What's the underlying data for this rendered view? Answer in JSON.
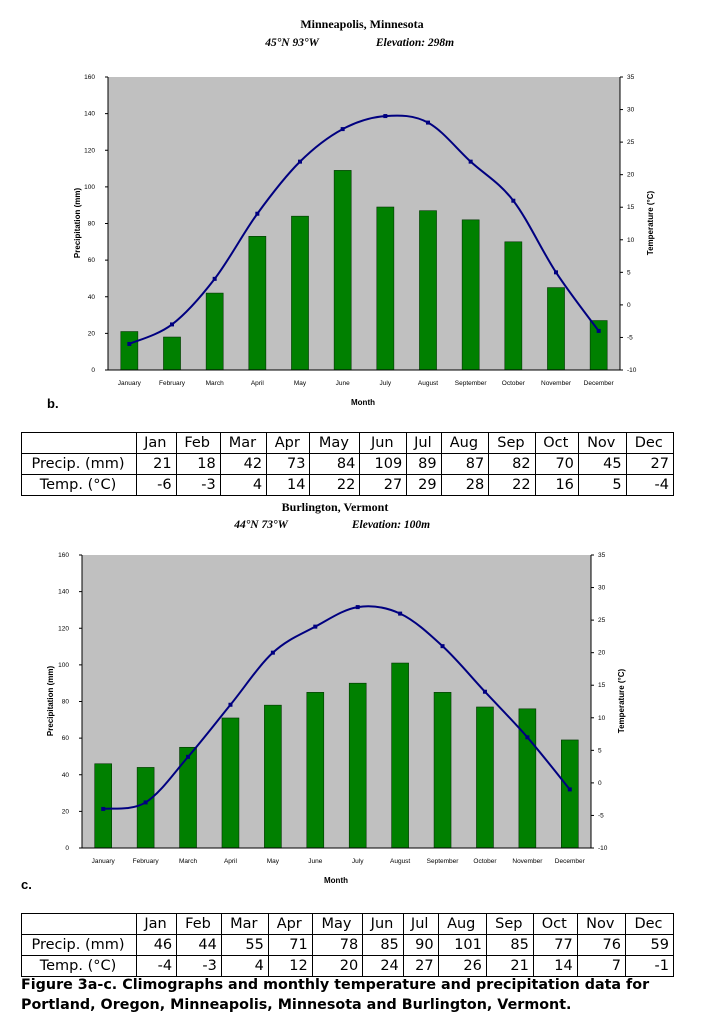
{
  "charts": [
    {
      "panel": "b.",
      "title": "Minneapolis, Minnesota",
      "coords": "45°N 93°W",
      "elevation": "Elevation: 298m",
      "xlabel": "Month",
      "ylabel_left": "Precipitation (mm)",
      "ylabel_right": "Temperature (°C)",
      "months": [
        "January",
        "February",
        "March",
        "April",
        "May",
        "June",
        "July",
        "August",
        "September",
        "October",
        "November",
        "December"
      ],
      "precip": [
        21,
        18,
        42,
        73,
        84,
        109,
        89,
        87,
        82,
        70,
        45,
        27
      ],
      "temp": [
        -6,
        -3,
        4,
        14,
        22,
        27,
        29,
        28,
        22,
        16,
        5,
        -4
      ],
      "precip_ticks": [
        "0",
        "20",
        "40",
        "60",
        "80",
        "100",
        "120",
        "140",
        "160"
      ],
      "temp_ticks": [
        "-10",
        "-5",
        "0",
        "5",
        "10",
        "15",
        "20",
        "25",
        "30",
        "35"
      ],
      "colors": {
        "plot_bg": "#c0c0c0",
        "bar": "#008000",
        "bar_border": "#003300",
        "line": "#000080"
      }
    },
    {
      "panel": "c.",
      "title": "Burlington, Vermont",
      "coords": "44°N 73°W",
      "elevation": "Elevation: 100m",
      "xlabel": "Month",
      "ylabel_left": "Precipitation (mm)",
      "ylabel_right": "Temperature (°C)",
      "months": [
        "January",
        "February",
        "March",
        "April",
        "May",
        "June",
        "July",
        "August",
        "September",
        "October",
        "November",
        "December"
      ],
      "precip": [
        46,
        44,
        55,
        71,
        78,
        85,
        90,
        101,
        85,
        77,
        76,
        59
      ],
      "temp": [
        -4,
        -3,
        4,
        12,
        20,
        24,
        27,
        26,
        21,
        14,
        7,
        -1
      ],
      "precip_ticks": [
        "0",
        "20",
        "40",
        "60",
        "80",
        "100",
        "120",
        "140",
        "160"
      ],
      "temp_ticks": [
        "-10",
        "-5",
        "0",
        "5",
        "10",
        "15",
        "20",
        "25",
        "30",
        "35"
      ],
      "colors": {
        "plot_bg": "#c0c0c0",
        "bar": "#008000",
        "bar_border": "#003300",
        "line": "#000080"
      }
    }
  ],
  "chart_data": [
    {
      "type": "bar",
      "title": "Minneapolis, Minnesota",
      "categories": [
        "January",
        "February",
        "March",
        "April",
        "May",
        "June",
        "July",
        "August",
        "September",
        "October",
        "November",
        "December"
      ],
      "series": [
        {
          "name": "Precipitation (mm)",
          "type": "bar",
          "axis": "left",
          "values": [
            21,
            18,
            42,
            73,
            84,
            109,
            89,
            87,
            82,
            70,
            45,
            27
          ]
        },
        {
          "name": "Temperature (°C)",
          "type": "line",
          "axis": "right",
          "values": [
            -6,
            -3,
            4,
            14,
            22,
            27,
            29,
            28,
            22,
            16,
            5,
            -4
          ]
        }
      ],
      "xlabel": "Month",
      "ylabel": "Precipitation (mm)",
      "y2label": "Temperature (°C)",
      "ylim": [
        0,
        160
      ],
      "y2lim": [
        -10,
        35
      ]
    },
    {
      "type": "bar",
      "title": "Burlington, Vermont",
      "categories": [
        "January",
        "February",
        "March",
        "April",
        "May",
        "June",
        "July",
        "August",
        "September",
        "October",
        "November",
        "December"
      ],
      "series": [
        {
          "name": "Precipitation (mm)",
          "type": "bar",
          "axis": "left",
          "values": [
            46,
            44,
            55,
            71,
            78,
            85,
            90,
            101,
            85,
            77,
            76,
            59
          ]
        },
        {
          "name": "Temperature (°C)",
          "type": "line",
          "axis": "right",
          "values": [
            -4,
            -3,
            4,
            12,
            20,
            24,
            27,
            26,
            21,
            14,
            7,
            -1
          ]
        }
      ],
      "xlabel": "Month",
      "ylabel": "Precipitation (mm)",
      "y2label": "Temperature (°C)",
      "ylim": [
        0,
        160
      ],
      "y2lim": [
        -10,
        35
      ]
    }
  ],
  "tables": [
    {
      "header": [
        "",
        "Jan",
        "Feb",
        "Mar",
        "Apr",
        "May",
        "Jun",
        "Jul",
        "Aug",
        "Sep",
        "Oct",
        "Nov",
        "Dec"
      ],
      "rows": [
        [
          "Precip. (mm)",
          "21",
          "18",
          "42",
          "73",
          "84",
          "109",
          "89",
          "87",
          "82",
          "70",
          "45",
          "27"
        ],
        [
          "Temp. (°C)",
          "-6",
          "-3",
          "4",
          "14",
          "22",
          "27",
          "29",
          "28",
          "22",
          "16",
          "5",
          "-4"
        ]
      ]
    },
    {
      "header": [
        "",
        "Jan",
        "Feb",
        "Mar",
        "Apr",
        "May",
        "Jun",
        "Jul",
        "Aug",
        "Sep",
        "Oct",
        "Nov",
        "Dec"
      ],
      "rows": [
        [
          "Precip. (mm)",
          "46",
          "44",
          "55",
          "71",
          "78",
          "85",
          "90",
          "101",
          "85",
          "77",
          "76",
          "59"
        ],
        [
          "Temp. (°C)",
          "-4",
          "-3",
          "4",
          "12",
          "20",
          "24",
          "27",
          "26",
          "21",
          "14",
          "7",
          "-1"
        ]
      ]
    }
  ],
  "caption": "Figure 3a-c. Climographs and monthly temperature and precipitation data for Portland, Oregon, Minneapolis, Minnesota and Burlington, Vermont."
}
